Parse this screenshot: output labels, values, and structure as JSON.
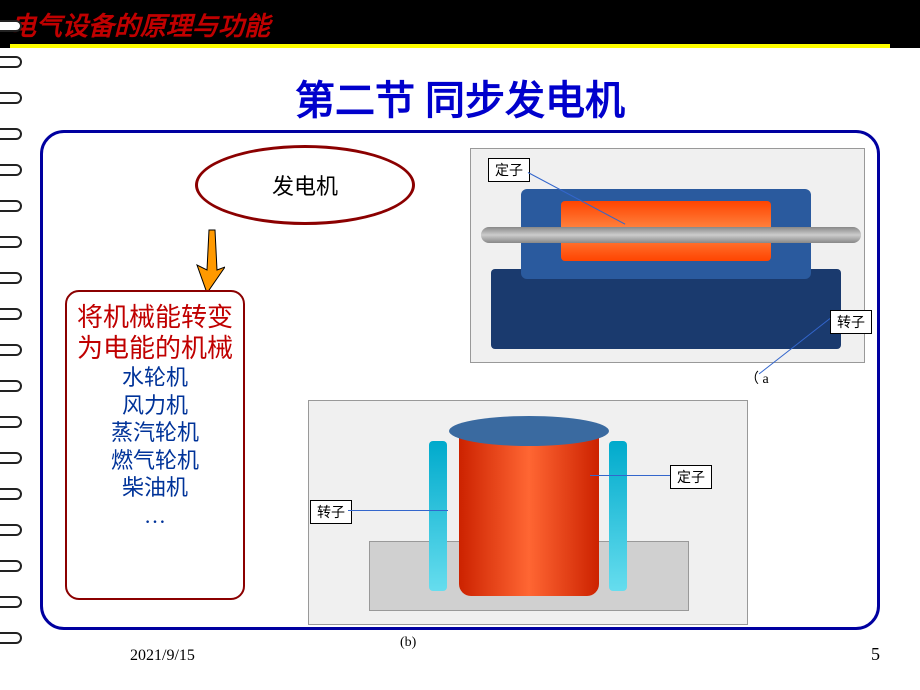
{
  "header": {
    "title": "电气设备的原理与功能"
  },
  "section_title": "第二节  同步发电机",
  "oval_label": "发电机",
  "description": {
    "main": "将机械能转变为电能的机械",
    "lines": [
      "水轮机",
      "风力机",
      "蒸汽轮机",
      "燃气轮机",
      "柴油机",
      "…"
    ]
  },
  "figure_a": {
    "label_top": "定子",
    "label_right": "转子",
    "caption": "（  a"
  },
  "figure_b": {
    "label_left": "转子",
    "label_right": "定子",
    "caption": "(b)"
  },
  "footer": {
    "date": "2021/9/15",
    "page": "5"
  },
  "colors": {
    "header_bg": "#000000",
    "header_text": "#c00000",
    "title_text": "#0000cc",
    "frame_border": "#0000a0",
    "oval_border": "#8b0000",
    "desc_main_text": "#c00000",
    "desc_sub_text": "#003399",
    "arrow_fill": "#ff9900",
    "arrow_stroke": "#000000"
  }
}
